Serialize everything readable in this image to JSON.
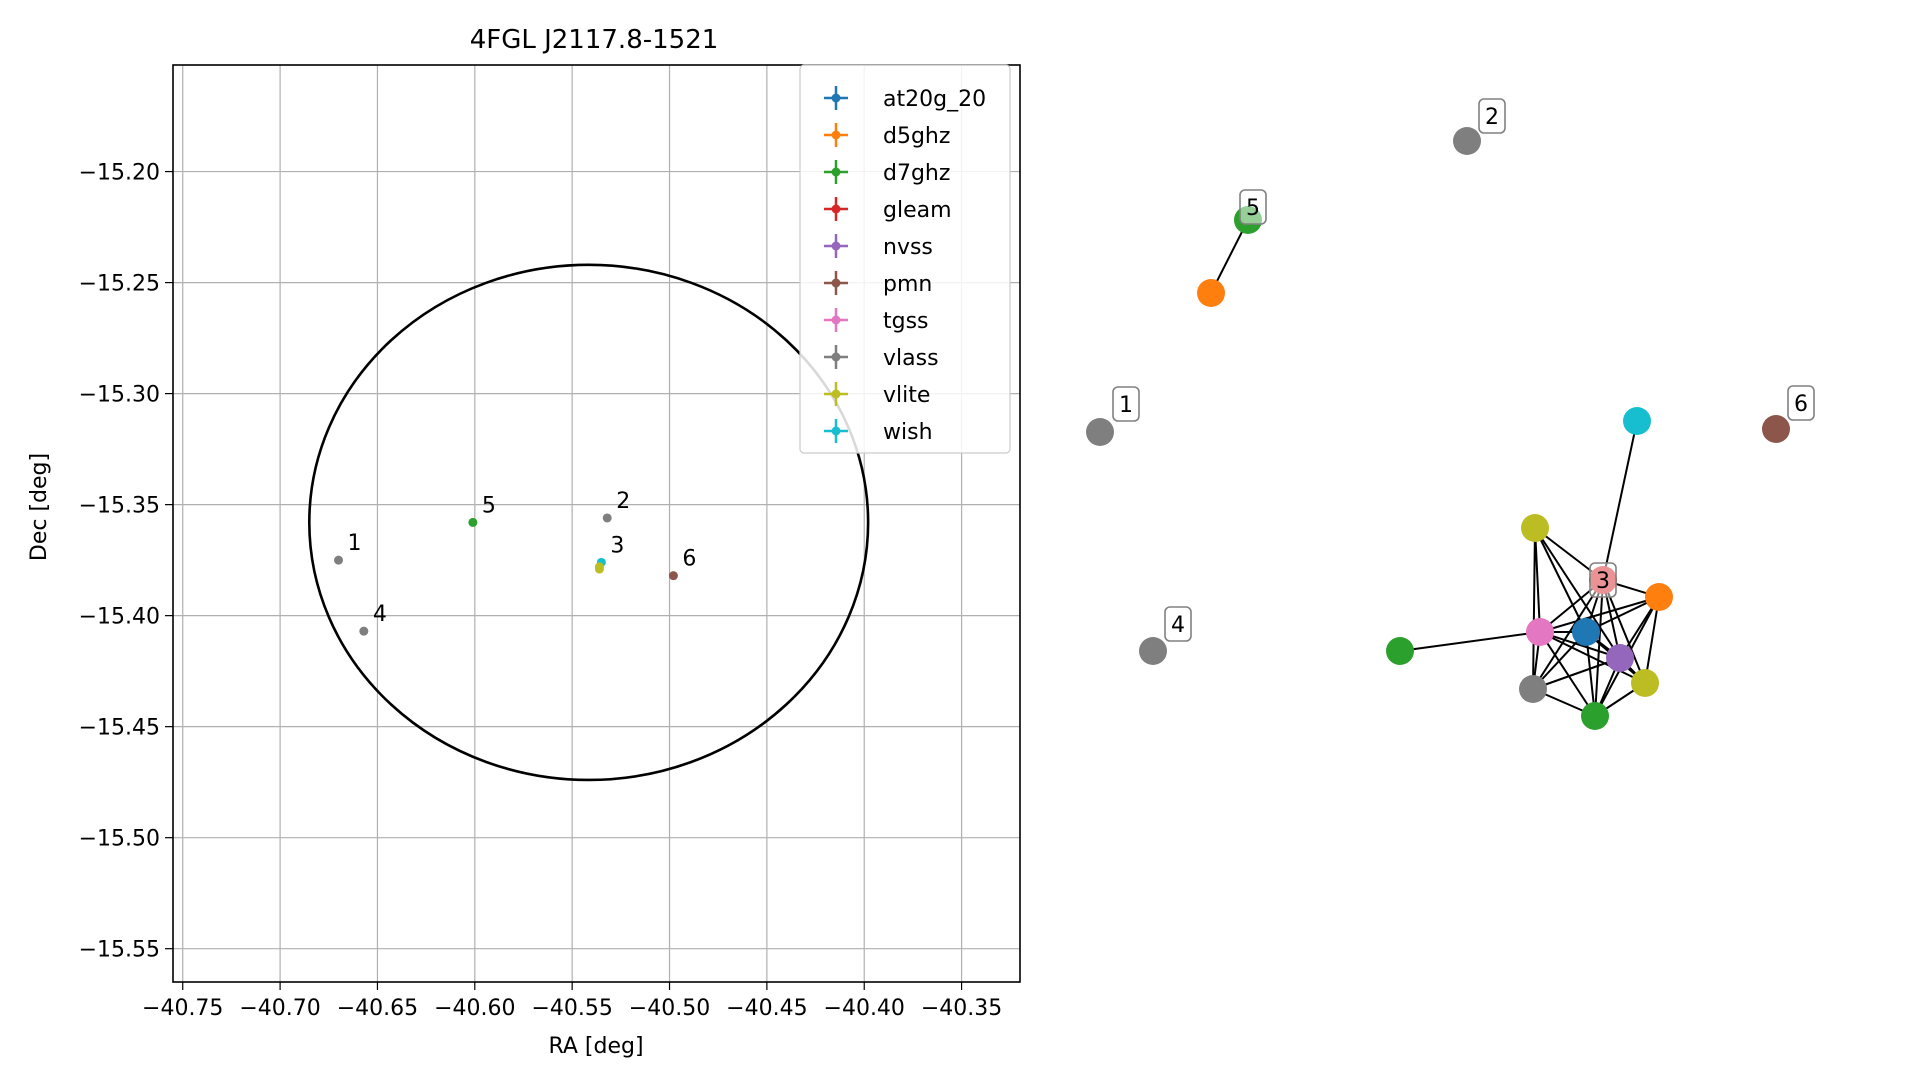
{
  "chart_data": [
    {
      "type": "scatter",
      "title": "4FGL J2117.8-1521",
      "xlabel": "RA [deg]",
      "ylabel": "Dec [deg]",
      "xlim": [
        -40.755,
        -40.32
      ],
      "ylim": [
        -15.565,
        -15.152
      ],
      "xticks": [
        -40.75,
        -40.7,
        -40.65,
        -40.6,
        -40.55,
        -40.5,
        -40.45,
        -40.4,
        -40.35
      ],
      "xtick_labels": [
        "−40.75",
        "−40.70",
        "−40.65",
        "−40.60",
        "−40.55",
        "−40.50",
        "−40.45",
        "−40.40",
        "−40.35"
      ],
      "yticks": [
        -15.2,
        -15.25,
        -15.3,
        -15.35,
        -15.4,
        -15.45,
        -15.5,
        -15.55
      ],
      "ytick_labels": [
        "−15.20",
        "−15.25",
        "−15.30",
        "−15.35",
        "−15.40",
        "−15.45",
        "−15.50",
        "−15.55"
      ],
      "grid": true,
      "legend_position": "top-right",
      "ellipse": {
        "center_ra": -40.5415,
        "center_dec": -15.358,
        "semi_ra": 0.1435,
        "semi_dec": 0.116
      },
      "series": [
        {
          "name": "at20g_20",
          "color": "#1f77b4"
        },
        {
          "name": "d5ghz",
          "color": "#ff7f0e"
        },
        {
          "name": "d7ghz",
          "color": "#2ca02c"
        },
        {
          "name": "gleam",
          "color": "#d62728"
        },
        {
          "name": "nvss",
          "color": "#9467bd"
        },
        {
          "name": "pmn",
          "color": "#8c564b"
        },
        {
          "name": "tgss",
          "color": "#e377c2"
        },
        {
          "name": "vlass",
          "color": "#7f7f7f"
        },
        {
          "name": "vlite",
          "color": "#bcbd22"
        },
        {
          "name": "wish",
          "color": "#17becf"
        }
      ],
      "points": [
        {
          "ra": -40.67,
          "dec": -15.375,
          "color": "#7f7f7f",
          "label": "1"
        },
        {
          "ra": -40.532,
          "dec": -15.356,
          "color": "#7f7f7f",
          "label": "2"
        },
        {
          "ra": -40.535,
          "dec": -15.376,
          "color": "#17becf",
          "label": "3"
        },
        {
          "ra": -40.536,
          "dec": -15.378,
          "color": "#bcbd22",
          "label": ""
        },
        {
          "ra": -40.536,
          "dec": -15.379,
          "color": "#bcbd22",
          "label": ""
        },
        {
          "ra": -40.657,
          "dec": -15.407,
          "color": "#7f7f7f",
          "label": "4"
        },
        {
          "ra": -40.601,
          "dec": -15.358,
          "color": "#2ca02c",
          "label": "5"
        },
        {
          "ra": -40.498,
          "dec": -15.382,
          "color": "#8c564b",
          "label": "6"
        }
      ]
    },
    {
      "type": "network",
      "nodes": [
        {
          "id": "n1",
          "color": "#7f7f7f",
          "label": "1"
        },
        {
          "id": "n2",
          "color": "#7f7f7f",
          "label": "2"
        },
        {
          "id": "n5a",
          "color": "#2ca02c",
          "label": "5"
        },
        {
          "id": "n5b",
          "color": "#ff7f0e",
          "label": ""
        },
        {
          "id": "n4",
          "color": "#7f7f7f",
          "label": "4"
        },
        {
          "id": "n6",
          "color": "#8c564b",
          "label": "6"
        },
        {
          "id": "wish",
          "color": "#17becf",
          "label": ""
        },
        {
          "id": "gleam",
          "color": "#d62728",
          "label": "3"
        },
        {
          "id": "vlite1",
          "color": "#bcbd22",
          "label": ""
        },
        {
          "id": "d5",
          "color": "#ff7f0e",
          "label": ""
        },
        {
          "id": "tgss",
          "color": "#e377c2",
          "label": ""
        },
        {
          "id": "at20g",
          "color": "#1f77b4",
          "label": ""
        },
        {
          "id": "nvss",
          "color": "#9467bd",
          "label": ""
        },
        {
          "id": "vlite2",
          "color": "#bcbd22",
          "label": ""
        },
        {
          "id": "vlass",
          "color": "#7f7f7f",
          "label": ""
        },
        {
          "id": "d7a",
          "color": "#2ca02c",
          "label": ""
        },
        {
          "id": "d7b",
          "color": "#2ca02c",
          "label": ""
        }
      ],
      "edges": [
        [
          "n5a",
          "n5b"
        ],
        [
          "wish",
          "gleam"
        ],
        [
          "d7a",
          "tgss"
        ],
        [
          "vlite1",
          "gleam"
        ],
        [
          "vlite1",
          "tgss"
        ],
        [
          "vlite1",
          "vlass"
        ],
        [
          "vlite1",
          "at20g"
        ],
        [
          "vlite1",
          "nvss"
        ],
        [
          "gleam",
          "d5"
        ],
        [
          "gleam",
          "tgss"
        ],
        [
          "gleam",
          "at20g"
        ],
        [
          "gleam",
          "nvss"
        ],
        [
          "gleam",
          "vlite2"
        ],
        [
          "gleam",
          "vlass"
        ],
        [
          "gleam",
          "d7b"
        ],
        [
          "d5",
          "tgss"
        ],
        [
          "d5",
          "at20g"
        ],
        [
          "d5",
          "nvss"
        ],
        [
          "d5",
          "vlite2"
        ],
        [
          "d5",
          "d7b"
        ],
        [
          "tgss",
          "at20g"
        ],
        [
          "tgss",
          "nvss"
        ],
        [
          "tgss",
          "vlite2"
        ],
        [
          "tgss",
          "vlass"
        ],
        [
          "tgss",
          "d7b"
        ],
        [
          "at20g",
          "nvss"
        ],
        [
          "at20g",
          "vlite2"
        ],
        [
          "at20g",
          "vlass"
        ],
        [
          "at20g",
          "d7b"
        ],
        [
          "nvss",
          "vlite2"
        ],
        [
          "nvss",
          "vlass"
        ],
        [
          "nvss",
          "d7b"
        ],
        [
          "vlite2",
          "d7b"
        ],
        [
          "vlass",
          "d7b"
        ]
      ]
    }
  ]
}
